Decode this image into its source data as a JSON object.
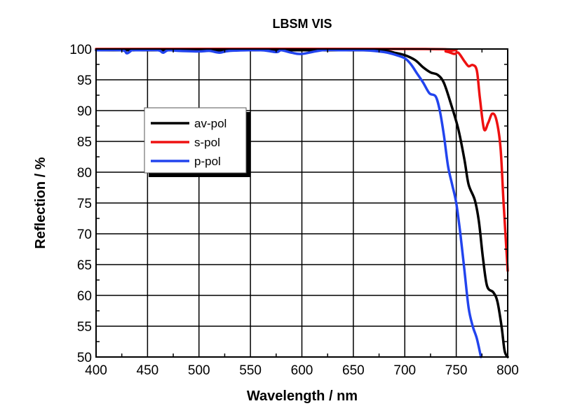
{
  "chart_data": {
    "type": "line",
    "title": "LBSM VIS",
    "xlabel": "Wavelength / nm",
    "ylabel": "Reflection / %",
    "xlim": [
      400,
      800
    ],
    "ylim": [
      50,
      100
    ],
    "xticks": [
      400,
      450,
      500,
      550,
      600,
      650,
      700,
      750,
      800
    ],
    "yticks": [
      50,
      55,
      60,
      65,
      70,
      75,
      80,
      85,
      90,
      95,
      100
    ],
    "grid": true,
    "legend_position": "upper-left",
    "series": [
      {
        "name": "av-pol",
        "color": "#000000",
        "x": [
          400,
          650,
          680,
          690,
          700,
          710,
          718,
          725,
          732,
          738,
          745,
          752,
          758,
          762,
          768,
          772,
          776,
          780,
          786,
          790,
          794,
          797,
          800
        ],
        "y": [
          99.8,
          99.8,
          99.7,
          99.4,
          99.0,
          98.2,
          97.0,
          96.2,
          95.8,
          94.5,
          91.0,
          87.0,
          82.0,
          78.0,
          75.5,
          72.0,
          66.0,
          61.5,
          60.5,
          59.0,
          55.0,
          51.0,
          50.0
        ]
      },
      {
        "name": "s-pol",
        "color": "#ee1111",
        "x": [
          400,
          720,
          740,
          748,
          752,
          758,
          762,
          766,
          770,
          773,
          777,
          781,
          785,
          789,
          793,
          796,
          800
        ],
        "y": [
          100,
          100,
          99.6,
          99.2,
          99.4,
          98.0,
          97.2,
          97.4,
          96.5,
          92.0,
          87.0,
          88.0,
          89.5,
          88.5,
          84.0,
          75.0,
          64.0
        ]
      },
      {
        "name": "p-pol",
        "color": "#2244ee",
        "x": [
          400,
          425,
          430,
          435,
          440,
          460,
          465,
          470,
          480,
          500,
          510,
          520,
          530,
          560,
          575,
          580,
          590,
          600,
          620,
          640,
          660,
          680,
          690,
          700,
          706,
          712,
          718,
          724,
          730,
          734,
          738,
          742,
          746,
          750,
          754,
          758,
          762,
          766,
          770,
          774
        ],
        "y": [
          99.8,
          99.8,
          99.3,
          99.8,
          99.8,
          99.8,
          99.4,
          99.8,
          99.7,
          99.6,
          99.7,
          99.4,
          99.7,
          99.8,
          99.5,
          99.8,
          99.4,
          99.2,
          99.8,
          99.8,
          99.8,
          99.5,
          99.1,
          98.5,
          97.5,
          96.0,
          94.5,
          92.8,
          92.3,
          90.0,
          86.0,
          81.0,
          78.0,
          75.0,
          70.0,
          64.0,
          58.0,
          55.0,
          53.0,
          50.0
        ]
      }
    ]
  }
}
